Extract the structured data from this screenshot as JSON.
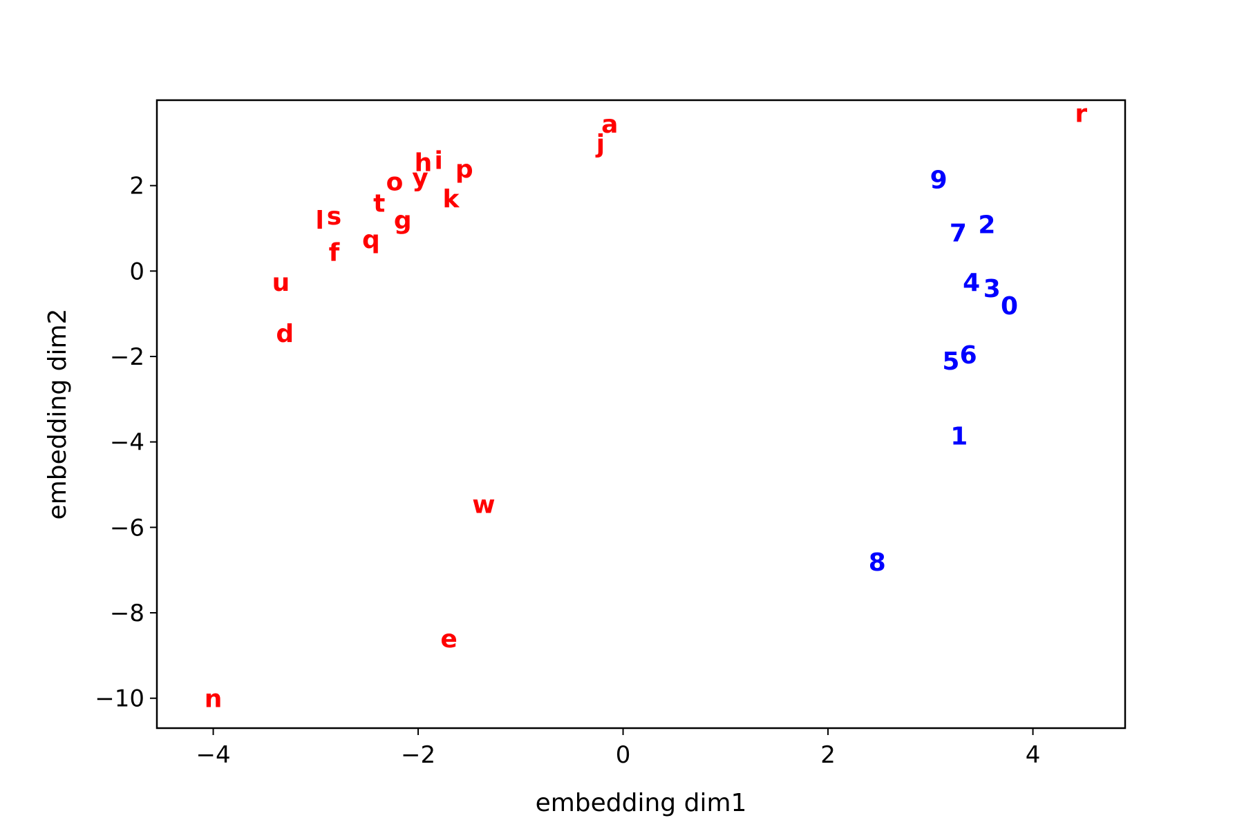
{
  "chart_data": {
    "type": "scatter",
    "title": "",
    "xlabel": "embedding dim1",
    "ylabel": "embedding dim2",
    "xlim": [
      -4.55,
      4.9
    ],
    "ylim": [
      -10.7,
      4.0
    ],
    "xticks": [
      -4,
      -2,
      0,
      2,
      4
    ],
    "yticks": [
      2,
      0,
      -2,
      -4,
      -6,
      -8,
      -10
    ],
    "grid": false,
    "colors": {
      "letters": "#ff0000",
      "digits": "#0000ff"
    },
    "points": [
      {
        "label": "a",
        "x": -0.13,
        "y": 3.45,
        "group": "letters"
      },
      {
        "label": "j",
        "x": -0.22,
        "y": 3.0,
        "group": "letters"
      },
      {
        "label": "r",
        "x": 4.47,
        "y": 3.7,
        "group": "letters"
      },
      {
        "label": "h",
        "x": -1.95,
        "y": 2.55,
        "group": "letters"
      },
      {
        "label": "i",
        "x": -1.8,
        "y": 2.6,
        "group": "letters"
      },
      {
        "label": "y",
        "x": -1.98,
        "y": 2.2,
        "group": "letters"
      },
      {
        "label": "p",
        "x": -1.55,
        "y": 2.4,
        "group": "letters"
      },
      {
        "label": "o",
        "x": -2.23,
        "y": 2.1,
        "group": "letters"
      },
      {
        "label": "k",
        "x": -1.68,
        "y": 1.7,
        "group": "letters"
      },
      {
        "label": "t",
        "x": -2.38,
        "y": 1.6,
        "group": "letters"
      },
      {
        "label": "g",
        "x": -2.15,
        "y": 1.2,
        "group": "letters"
      },
      {
        "label": "l",
        "x": -2.96,
        "y": 1.2,
        "group": "letters"
      },
      {
        "label": "s",
        "x": -2.82,
        "y": 1.3,
        "group": "letters"
      },
      {
        "label": "q",
        "x": -2.46,
        "y": 0.75,
        "group": "letters"
      },
      {
        "label": "f",
        "x": -2.82,
        "y": 0.45,
        "group": "letters"
      },
      {
        "label": "u",
        "x": -3.34,
        "y": -0.25,
        "group": "letters"
      },
      {
        "label": "d",
        "x": -3.3,
        "y": -1.45,
        "group": "letters"
      },
      {
        "label": "w",
        "x": -1.36,
        "y": -5.45,
        "group": "letters"
      },
      {
        "label": "e",
        "x": -1.7,
        "y": -8.6,
        "group": "letters"
      },
      {
        "label": "n",
        "x": -4.0,
        "y": -10.0,
        "group": "letters"
      },
      {
        "label": "9",
        "x": 3.08,
        "y": 2.15,
        "group": "digits"
      },
      {
        "label": "2",
        "x": 3.55,
        "y": 1.1,
        "group": "digits"
      },
      {
        "label": "7",
        "x": 3.27,
        "y": 0.9,
        "group": "digits"
      },
      {
        "label": "4",
        "x": 3.4,
        "y": -0.25,
        "group": "digits"
      },
      {
        "label": "3",
        "x": 3.6,
        "y": -0.4,
        "group": "digits"
      },
      {
        "label": "0",
        "x": 3.77,
        "y": -0.8,
        "group": "digits"
      },
      {
        "label": "6",
        "x": 3.37,
        "y": -1.95,
        "group": "digits"
      },
      {
        "label": "5",
        "x": 3.2,
        "y": -2.1,
        "group": "digits"
      },
      {
        "label": "1",
        "x": 3.28,
        "y": -3.85,
        "group": "digits"
      },
      {
        "label": "8",
        "x": 2.48,
        "y": -6.8,
        "group": "digits"
      }
    ]
  }
}
